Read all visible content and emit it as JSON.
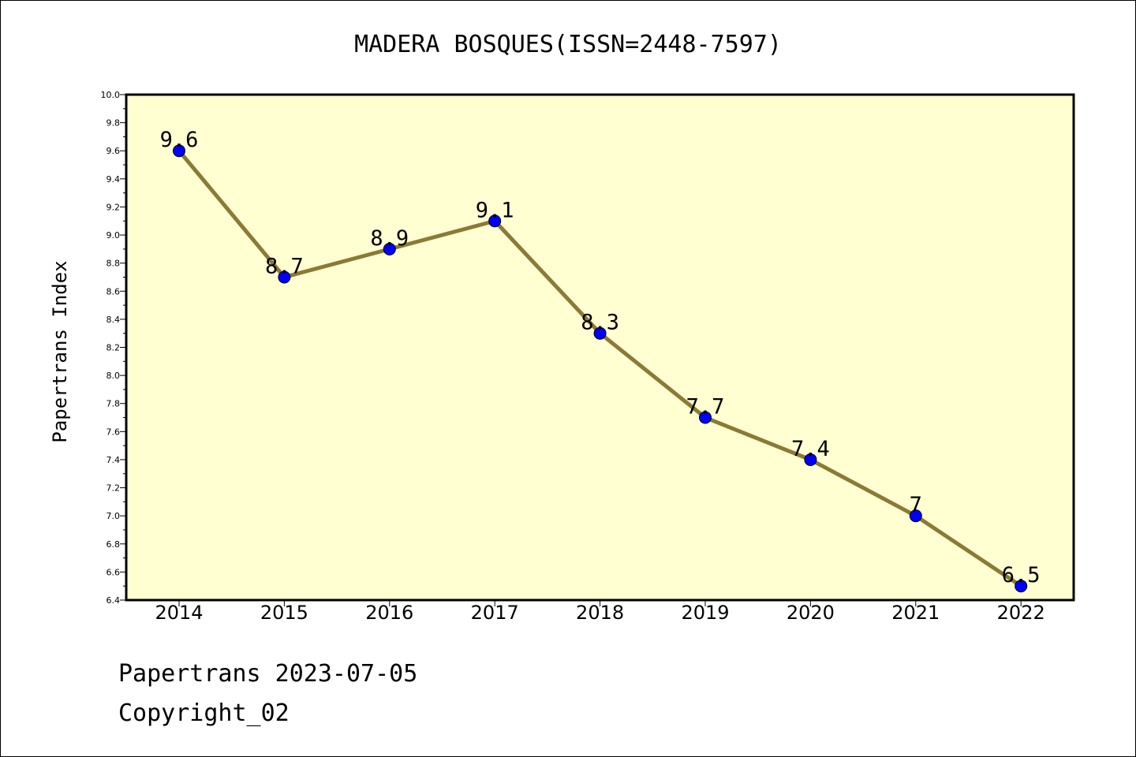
{
  "chart_data": {
    "type": "line",
    "title": "MADERA BOSQUES(ISSN=2448-7597)",
    "ylabel": "Papertrans Index",
    "xlabel": "",
    "categories": [
      "2014",
      "2015",
      "2016",
      "2017",
      "2018",
      "2019",
      "2020",
      "2021",
      "2022"
    ],
    "values": [
      9.6,
      8.7,
      8.9,
      9.1,
      8.3,
      7.7,
      7.4,
      7.0,
      6.5
    ],
    "data_labels": [
      "9.6",
      "8.7",
      "8.9",
      "9.1",
      "8.3",
      "7.7",
      "7.4",
      "7",
      "6.5"
    ],
    "ylim": [
      6.4,
      10.0
    ],
    "yticks": [
      "6.4",
      "6.6",
      "6.8",
      "7.0",
      "7.2",
      "7.4",
      "7.6",
      "7.8",
      "8.0",
      "8.2",
      "8.4",
      "8.6",
      "8.8",
      "9.0",
      "9.2",
      "9.4",
      "9.6",
      "9.8",
      "10.0"
    ],
    "grid": false,
    "legend": "none",
    "colors": {
      "plot_background": "#ffffd2",
      "line": "#8b7a35",
      "marker": "#0000ff"
    }
  },
  "footer": {
    "line1": "Papertrans 2023-07-05",
    "line2": "Copyright_02"
  }
}
